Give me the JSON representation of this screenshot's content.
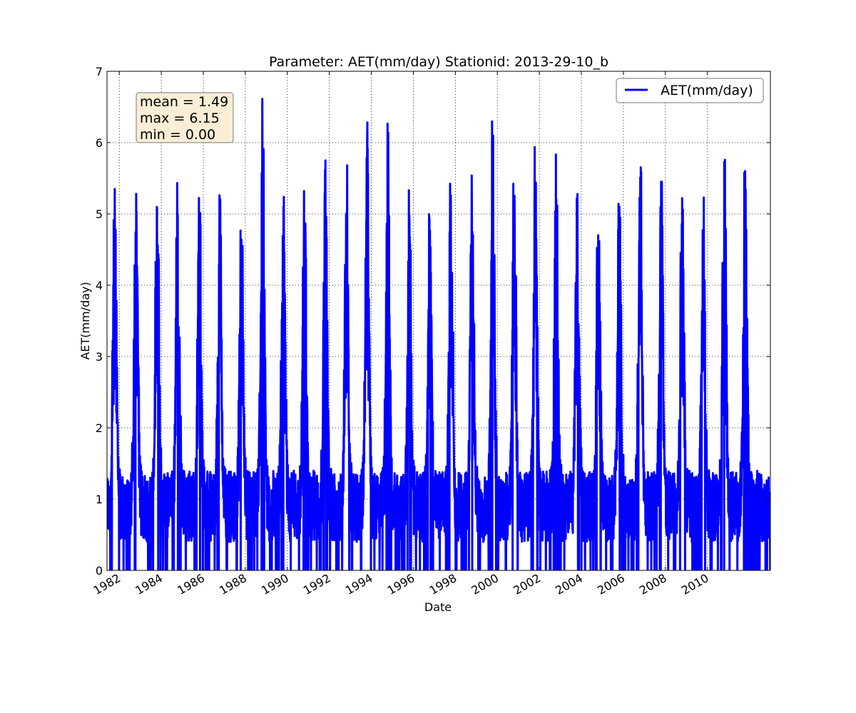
{
  "chart_data": {
    "type": "line",
    "title": "Parameter: AET(mm/day) Stationid: 2013-29-10_b",
    "xlabel": "Date",
    "ylabel": "AET(mm/day)",
    "xlim": [
      "1981-06-01",
      "2012-12-31"
    ],
    "ylim": [
      0,
      7
    ],
    "grid": true,
    "legend_position": "top-right",
    "x_ticks": [
      "1982",
      "1984",
      "1986",
      "1988",
      "1990",
      "1992",
      "1994",
      "1996",
      "1998",
      "2000",
      "2002",
      "2004",
      "2006",
      "2008",
      "2010"
    ],
    "y_ticks": [
      "0",
      "1",
      "2",
      "3",
      "4",
      "5",
      "6",
      "7"
    ],
    "stats_box": {
      "lines": [
        "mean = 1.49",
        "max = 6.15",
        "min = 0.00"
      ]
    },
    "series": [
      {
        "name": "AET(mm/day)",
        "color": "#0000ff",
        "annual_peaks": [
          {
            "date": "1981-10-15",
            "value": 5.35
          },
          {
            "date": "1982-10-20",
            "value": 5.28
          },
          {
            "date": "1983-10-20",
            "value": 5.08
          },
          {
            "date": "1984-10-10",
            "value": 4.99
          },
          {
            "date": "1985-10-25",
            "value": 4.65
          },
          {
            "date": "1986-10-15",
            "value": 4.83
          },
          {
            "date": "1987-10-25",
            "value": 4.64
          },
          {
            "date": "1988-10-25",
            "value": 6.15
          },
          {
            "date": "1989-10-25",
            "value": 5.1
          },
          {
            "date": "1990-10-25",
            "value": 4.87
          },
          {
            "date": "1991-10-25",
            "value": 5.75
          },
          {
            "date": "1992-10-25",
            "value": 5.01
          },
          {
            "date": "1993-10-20",
            "value": 6.01
          },
          {
            "date": "1994-10-15",
            "value": 5.87
          },
          {
            "date": "1995-10-25",
            "value": 4.86
          },
          {
            "date": "1996-10-15",
            "value": 4.77
          },
          {
            "date": "1997-10-15",
            "value": 5.26
          },
          {
            "date": "1998-10-15",
            "value": 5.16
          },
          {
            "date": "1999-10-15",
            "value": 5.99
          },
          {
            "date": "2000-10-20",
            "value": 5.21
          },
          {
            "date": "2001-10-20",
            "value": 5.18
          },
          {
            "date": "2002-10-20",
            "value": 5.2
          },
          {
            "date": "2003-10-20",
            "value": 4.91
          },
          {
            "date": "2004-10-20",
            "value": 4.7
          },
          {
            "date": "2005-10-20",
            "value": 4.99
          },
          {
            "date": "2006-10-20",
            "value": 5.51
          },
          {
            "date": "2007-10-20",
            "value": 5.45
          },
          {
            "date": "2008-10-20",
            "value": 5.22
          },
          {
            "date": "2009-10-20",
            "value": 4.61
          },
          {
            "date": "2010-10-20",
            "value": 5.73
          },
          {
            "date": "2011-10-20",
            "value": 5.6
          }
        ]
      }
    ]
  }
}
